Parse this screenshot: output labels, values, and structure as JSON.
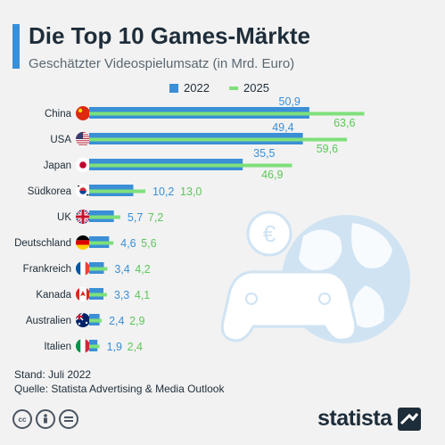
{
  "header": {
    "title": "Die Top 10 Games-Märkte",
    "subtitle": "Geschätzter Videospielumsatz (in Mrd. Euro)"
  },
  "legend": {
    "items": [
      {
        "label": "2022",
        "color": "#3a8fd6"
      },
      {
        "label": "2025",
        "color": "#7ee07a"
      }
    ]
  },
  "footer": {
    "stand": "Stand: Juli 2022",
    "source": "Quelle: Statista Advertising & Media Outlook",
    "logo": "statista",
    "license_icons": [
      "cc-icon",
      "by-icon",
      "nd-icon"
    ]
  },
  "colors": {
    "bar_2022": "#3a8fd6",
    "bar_2025": "#7ee07a",
    "label_2022": "#3a8fd6",
    "label_2025": "#5cc75a",
    "text": "#1e2d3a",
    "background": "#f2f2f2"
  },
  "chart_data": {
    "type": "bar",
    "orientation": "horizontal",
    "categories": [
      "China",
      "USA",
      "Japan",
      "Südkorea",
      "UK",
      "Deutschland",
      "Frankreich",
      "Kanada",
      "Australien",
      "Italien"
    ],
    "series": [
      {
        "name": "2022",
        "values": [
          50.9,
          49.4,
          35.5,
          10.2,
          5.7,
          4.6,
          3.4,
          3.3,
          2.4,
          1.9
        ]
      },
      {
        "name": "2025",
        "values": [
          63.6,
          59.6,
          46.9,
          13.0,
          7.2,
          5.6,
          4.2,
          4.1,
          2.9,
          2.4
        ]
      }
    ],
    "value_labels": [
      [
        "50,9",
        "63,6"
      ],
      [
        "49,4",
        "59,6"
      ],
      [
        "35,5",
        "46,9"
      ],
      [
        "10,2",
        "13,0"
      ],
      [
        "5,7",
        "7,2"
      ],
      [
        "4,6",
        "5,6"
      ],
      [
        "3,4",
        "4,2"
      ],
      [
        "3,3",
        "4,1"
      ],
      [
        "2,4",
        "2,9"
      ],
      [
        "1,9",
        "2,4"
      ]
    ],
    "flags": [
      "china-flag",
      "usa-flag",
      "japan-flag",
      "south-korea-flag",
      "uk-flag",
      "germany-flag",
      "france-flag",
      "canada-flag",
      "australia-flag",
      "italy-flag"
    ],
    "grid": false,
    "legend_position": "top-center"
  }
}
